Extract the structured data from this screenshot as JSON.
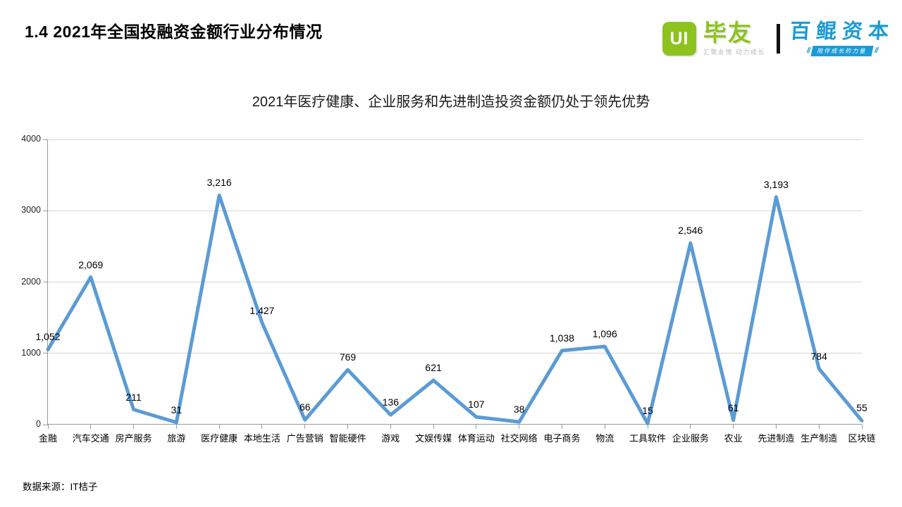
{
  "header": {
    "title": "1.4 2021年全国投融资金额行业分布情况",
    "logos": {
      "biyou": {
        "square_text": "UI",
        "name": "毕友",
        "tagline": "汇聚友情 动力成长",
        "brand_green": "#8DC21F"
      },
      "divider": "",
      "baikun": {
        "name": "百鲲资本",
        "badge_slash": "//",
        "badge_text": "陪伴成长的力量",
        "brand_blue": "#1B9BD6"
      }
    }
  },
  "chart_data": {
    "type": "line",
    "title": "2021年医疗健康、企业服务和先进制造投资金额仍处于领先优势",
    "categories": [
      "金融",
      "汽车交通",
      "房产服务",
      "旅游",
      "医疗健康",
      "本地生活",
      "广告营销",
      "智能硬件",
      "游戏",
      "文娱传媒",
      "体育运动",
      "社交网络",
      "电子商务",
      "物流",
      "工具软件",
      "企业服务",
      "农业",
      "先进制造",
      "生产制造",
      "区块链"
    ],
    "values": [
      1052,
      2069,
      211,
      31,
      3216,
      1427,
      66,
      769,
      136,
      621,
      107,
      38,
      1038,
      1096,
      15,
      2546,
      61,
      3193,
      784,
      55
    ],
    "ylim": [
      0,
      4000
    ],
    "y_ticks": [
      0,
      1000,
      2000,
      3000,
      4000
    ],
    "grid": true,
    "legend": "none",
    "value_labels": true,
    "line_color": "#5B9BD5"
  },
  "footer": {
    "source": "数据来源：IT桔子"
  }
}
